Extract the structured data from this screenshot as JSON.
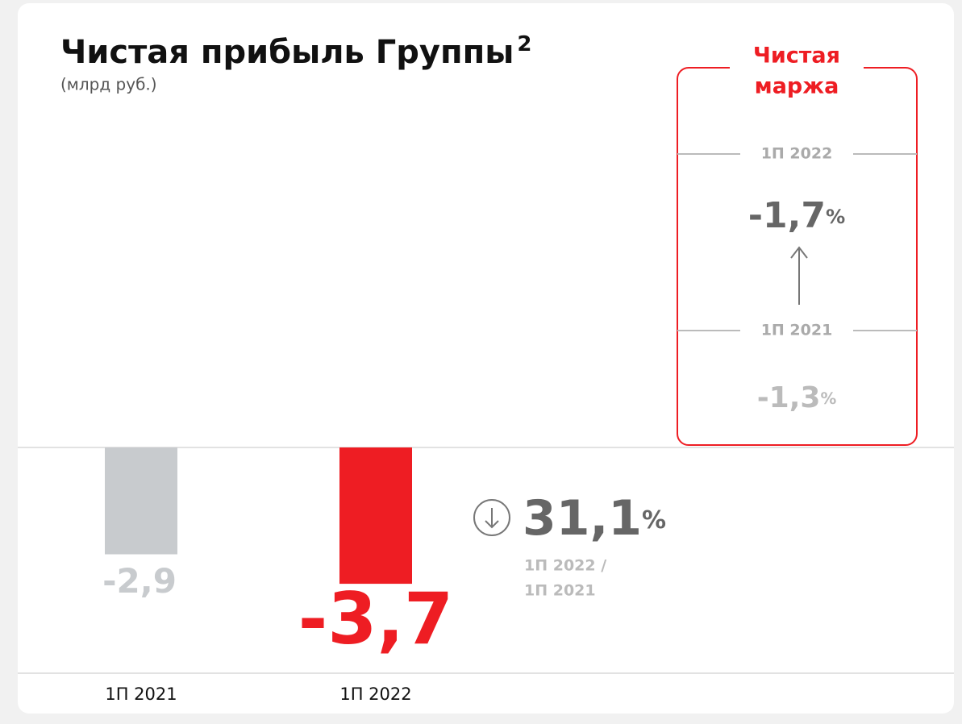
{
  "chart_data": {
    "type": "bar",
    "title": "Чистая прибыль Группы",
    "title_note": "2",
    "subtitle": "(млрд руб.)",
    "categories": [
      "1П 2021",
      "1П 2022"
    ],
    "series": [
      {
        "name": "Чистая прибыль",
        "values": [
          -2.9,
          -3.7
        ],
        "value_labels": [
          "-2,9",
          "-3,7"
        ],
        "colors": [
          "#c8cbce",
          "#ee1d23"
        ]
      }
    ],
    "change": {
      "value": 31.1,
      "label": "31,1",
      "unit": "%",
      "caption": [
        "1П 2022 /",
        "1П 2021"
      ]
    },
    "margin": {
      "title": [
        "Чистая",
        "маржа"
      ],
      "items": [
        {
          "period": "1П 2022",
          "value": -1.7,
          "label": "-1,7",
          "unit": "%"
        },
        {
          "period": "1П 2021",
          "value": -1.3,
          "label": "-1,3",
          "unit": "%"
        }
      ]
    }
  }
}
